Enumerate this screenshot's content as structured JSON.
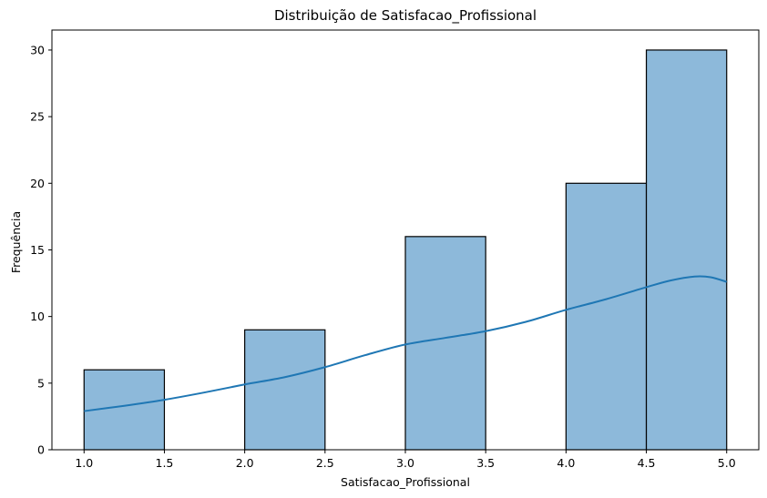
{
  "chart_data": {
    "type": "bar",
    "title": "Distribuição de Satisfacao_Profissional",
    "xlabel": "Satisfacao_Profissional",
    "ylabel": "Frequência",
    "xlim": [
      0.8,
      5.2
    ],
    "ylim": [
      0,
      31.5
    ],
    "x_ticks": [
      "1.0",
      "1.5",
      "2.0",
      "2.5",
      "3.0",
      "3.5",
      "4.0",
      "4.5",
      "5.0"
    ],
    "x_tick_values": [
      1.0,
      1.5,
      2.0,
      2.5,
      3.0,
      3.5,
      4.0,
      4.5,
      5.0
    ],
    "y_ticks": [
      "0",
      "5",
      "10",
      "15",
      "20",
      "25",
      "30"
    ],
    "y_tick_values": [
      0,
      5,
      10,
      15,
      20,
      25,
      30
    ],
    "bins": [
      {
        "x0": 1.0,
        "x1": 1.5,
        "count": 6
      },
      {
        "x0": 1.5,
        "x1": 2.0,
        "count": 0
      },
      {
        "x0": 2.0,
        "x1": 2.5,
        "count": 9
      },
      {
        "x0": 2.5,
        "x1": 3.0,
        "count": 0
      },
      {
        "x0": 3.0,
        "x1": 3.5,
        "count": 16
      },
      {
        "x0": 3.5,
        "x1": 4.0,
        "count": 0
      },
      {
        "x0": 4.0,
        "x1": 4.5,
        "count": 20
      },
      {
        "x0": 4.5,
        "x1": 5.0,
        "count": 30
      }
    ],
    "kde_curve": {
      "x": [
        1.0,
        1.25,
        1.5,
        1.75,
        2.0,
        2.25,
        2.5,
        2.75,
        3.0,
        3.25,
        3.5,
        3.75,
        4.0,
        4.25,
        4.5,
        4.65,
        4.8,
        4.9,
        5.0
      ],
      "y": [
        2.9,
        3.3,
        3.75,
        4.3,
        4.9,
        5.45,
        6.2,
        7.1,
        7.9,
        8.4,
        8.9,
        9.6,
        10.5,
        11.3,
        12.2,
        12.7,
        13.0,
        12.95,
        12.6
      ]
    },
    "colors": {
      "bar_fill": "#8db9da",
      "bar_edge": "#000000",
      "kde_line": "#1f77b4"
    },
    "grid": false,
    "legend": "none"
  }
}
